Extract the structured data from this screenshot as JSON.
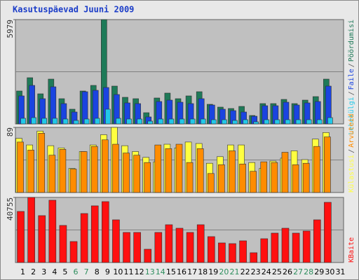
{
  "title": "Kasutuspäevad Juuni 2009",
  "legend_separator": "/",
  "chart_data": [
    {
      "type": "bar",
      "ylim": [
        0,
        5979
      ],
      "yticks": [
        5979
      ],
      "series": [
        {
          "name": "Pöördumisi",
          "color": "#1e7a58",
          "values": [
            1886,
            2648,
            1725,
            2568,
            1445,
            843,
            1886,
            2207,
            5979,
            2167,
            1525,
            1445,
            642,
            1485,
            1766,
            1445,
            1605,
            1846,
            1124,
            963,
            883,
            1003,
            482,
            1164,
            1164,
            1404,
            1164,
            1364,
            1565,
            2568,
            null
          ]
        },
        {
          "name": "Faile",
          "color": "#1a44e0",
          "values": [
            1605,
            2207,
            1445,
            2127,
            1164,
            682,
            1846,
            1926,
            2087,
            1685,
            1204,
            1164,
            401,
            1284,
            1364,
            1244,
            1164,
            1445,
            1083,
            843,
            762,
            682,
            441,
            1043,
            1043,
            1244,
            1083,
            1204,
            1284,
            2167,
            null
          ]
        },
        {
          "name": "Lehekülgi",
          "color": "#22c8e8",
          "values": [
            321,
            361,
            321,
            321,
            281,
            200,
            281,
            321,
            843,
            321,
            281,
            281,
            160,
            281,
            281,
            281,
            281,
            281,
            241,
            241,
            200,
            241,
            120,
            241,
            241,
            241,
            241,
            241,
            241,
            361,
            null
          ]
        }
      ]
    },
    {
      "type": "bar",
      "ylim": [
        0,
        89
      ],
      "yticks": [
        89
      ],
      "series": [
        {
          "name": "Arvuteid",
          "color": "#ff8c00",
          "values": [
            69,
            58,
            81,
            51,
            59,
            32,
            56,
            63,
            72,
            66,
            54,
            51,
            41,
            65,
            60,
            66,
            41,
            60,
            26,
            38,
            57,
            39,
            29,
            42,
            41,
            55,
            38,
            40,
            63,
            76,
            null
          ]
        },
        {
          "name": "Külastusi",
          "color": "#ffff40",
          "values": [
            74,
            65,
            84,
            64,
            61,
            33,
            56,
            65,
            79,
            89,
            64,
            56,
            48,
            42,
            66,
            61,
            69,
            67,
            40,
            49,
            65,
            65,
            41,
            33,
            43,
            47,
            57,
            45,
            73,
            82,
            null
          ]
        }
      ]
    },
    {
      "type": "bar",
      "ylim": [
        0,
        40755
      ],
      "yticks": [
        40755
      ],
      "categories": [
        "1",
        "2",
        "3",
        "4",
        "5",
        "6",
        "7",
        "8",
        "9",
        "10",
        "11",
        "12",
        "13",
        "14",
        "15",
        "16",
        "17",
        "18",
        "19",
        "20",
        "21",
        "22",
        "23",
        "24",
        "25",
        "26",
        "27",
        "28",
        "29",
        "30",
        "31"
      ],
      "category_colors": [
        "#000000",
        "#000000",
        "#000000",
        "#000000",
        "#000000",
        "#2f8f5f",
        "#2f8f5f",
        "#000000",
        "#000000",
        "#000000",
        "#000000",
        "#000000",
        "#2f8f5f",
        "#2f8f5f",
        "#000000",
        "#000000",
        "#000000",
        "#000000",
        "#000000",
        "#2f8f5f",
        "#2f8f5f",
        "#000000",
        "#000000",
        "#000000",
        "#000000",
        "#000000",
        "#2f8f5f",
        "#2f8f5f",
        "#000000",
        "#000000",
        "#000000"
      ],
      "series": [
        {
          "name": "KBaite",
          "color": "#ff1010",
          "values": [
            31990,
            40755,
            29361,
            39002,
            23226,
            13147,
            30676,
            35496,
            38126,
            26731,
            18844,
            18844,
            8326,
            18844,
            23664,
            21473,
            18844,
            23664,
            16214,
            12270,
            11832,
            13585,
            6135,
            14900,
            18405,
            21473,
            18405,
            19720,
            26731,
            37687,
            null
          ]
        }
      ]
    }
  ]
}
